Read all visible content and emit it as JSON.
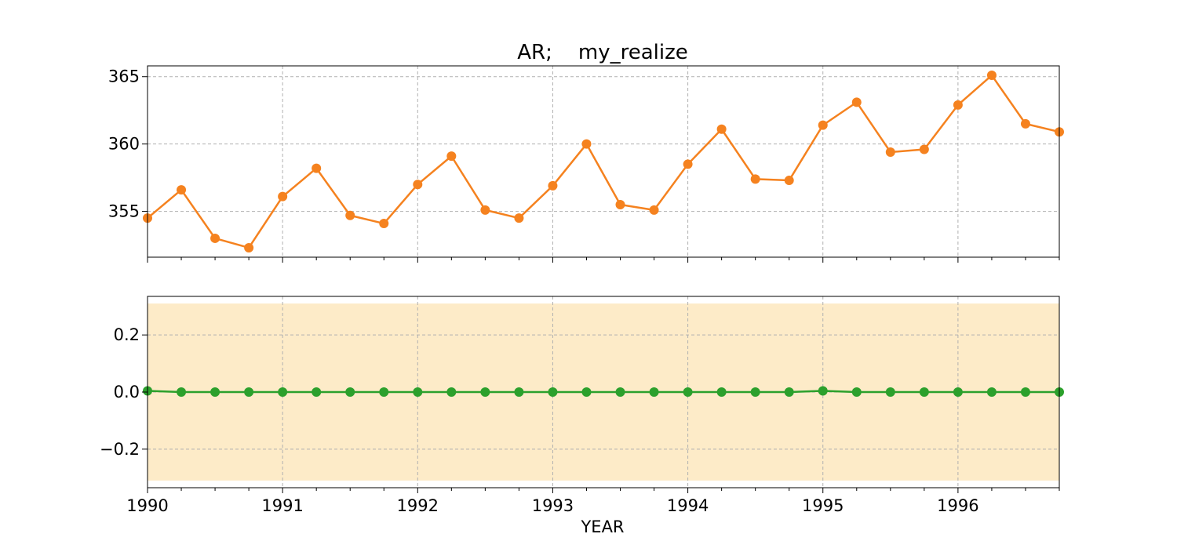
{
  "chart_data": [
    {
      "type": "line",
      "title": "AR;    my_realize",
      "xlabel": "",
      "ylabel": "",
      "xlim": [
        1990.0,
        1996.75
      ],
      "ylim": [
        351.6,
        365.8
      ],
      "yticks": [
        355,
        360,
        365
      ],
      "grid": true,
      "x": [
        1990.0,
        1990.25,
        1990.5,
        1990.75,
        1991.0,
        1991.25,
        1991.5,
        1991.75,
        1992.0,
        1992.25,
        1992.5,
        1992.75,
        1993.0,
        1993.25,
        1993.5,
        1993.75,
        1994.0,
        1994.25,
        1994.5,
        1994.75,
        1995.0,
        1995.25,
        1995.5,
        1995.75,
        1996.0,
        1996.25,
        1996.5,
        1996.75
      ],
      "series": [
        {
          "name": "",
          "color": "#f5821f",
          "values": [
            354.5,
            356.6,
            353.0,
            352.3,
            356.1,
            358.2,
            354.7,
            354.1,
            357.0,
            359.1,
            355.1,
            354.5,
            356.9,
            360.0,
            355.5,
            355.1,
            358.5,
            361.1,
            357.4,
            357.3,
            361.4,
            363.1,
            359.4,
            359.6,
            362.9,
            365.1,
            361.5,
            360.9
          ]
        }
      ]
    },
    {
      "type": "line",
      "title": "",
      "xlabel": "YEAR",
      "ylabel": "",
      "xlim": [
        1990.0,
        1996.75
      ],
      "ylim": [
        -0.335,
        0.335
      ],
      "yticks": [
        -0.2,
        0.0,
        0.2
      ],
      "ytick_labels": [
        "−0.2",
        "0.0",
        "0.2"
      ],
      "xticks": [
        1990,
        1991,
        1992,
        1993,
        1994,
        1995,
        1996
      ],
      "xtick_labels": [
        "1990",
        "1991",
        "1992",
        "1993",
        "1994",
        "1995",
        "1996"
      ],
      "grid": true,
      "band": {
        "low": -0.31,
        "high": 0.31,
        "color": "#fdebc8"
      },
      "x": [
        1990.0,
        1990.25,
        1990.5,
        1990.75,
        1991.0,
        1991.25,
        1991.5,
        1991.75,
        1992.0,
        1992.25,
        1992.5,
        1992.75,
        1993.0,
        1993.25,
        1993.5,
        1993.75,
        1994.0,
        1994.25,
        1994.5,
        1994.75,
        1995.0,
        1995.25,
        1995.5,
        1995.75,
        1996.0,
        1996.25,
        1996.5,
        1996.75
      ],
      "series": [
        {
          "name": "",
          "color": "#2ca02c",
          "values": [
            0.004,
            0.0,
            0.0,
            0.0,
            0.0,
            0.0,
            0.0,
            0.0,
            0.0,
            0.0,
            0.0,
            0.0,
            0.0,
            0.0,
            0.0,
            0.0,
            0.0,
            0.0,
            0.0,
            0.0,
            0.004,
            0.0,
            0.0,
            0.0,
            0.0,
            0.0,
            0.0,
            0.0
          ]
        }
      ]
    }
  ]
}
